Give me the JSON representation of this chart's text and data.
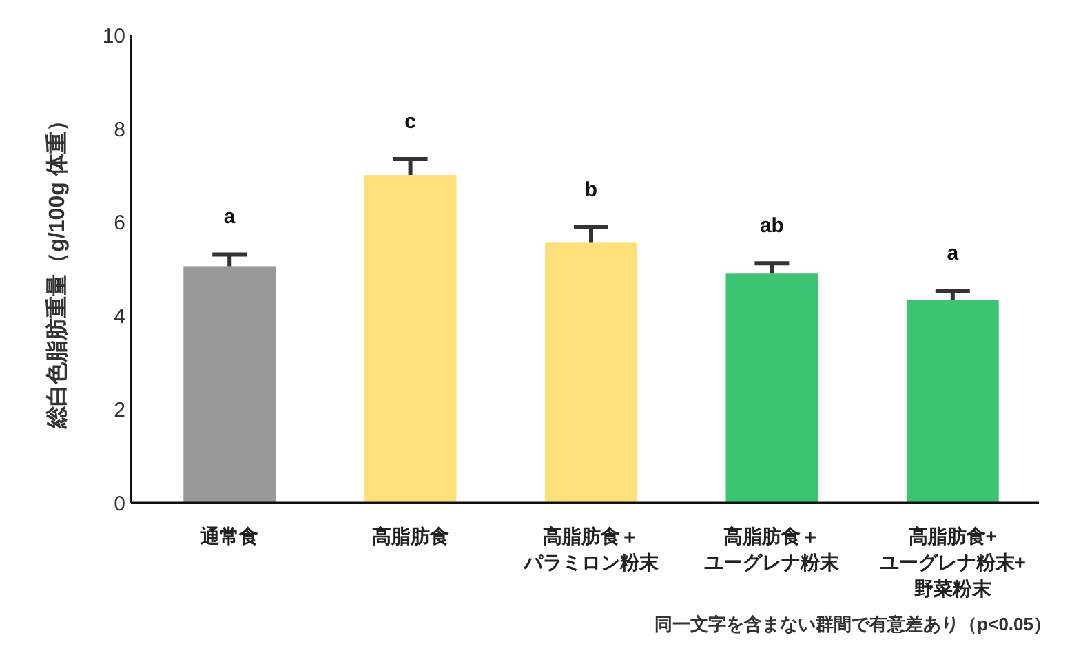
{
  "chart_data": {
    "type": "bar",
    "ylabel": "総白色脂肪重量（g/100g 体重）",
    "categories": [
      "通常食",
      "高脂肪食",
      "高脂肪食＋パラミロン粉末",
      "高脂肪食＋ユーグレナ粉末",
      "高脂肪食+ユーグレナ粉末+野菜粉末"
    ],
    "values": [
      5.06,
      7.01,
      5.56,
      4.9,
      4.34
    ],
    "colors": [
      "#999999",
      "#fedf79",
      "#fedf79",
      "#3cc473",
      "#3cc473"
    ],
    "errors": [
      [
        5.06,
        5.31
      ],
      [
        7.01,
        7.35
      ],
      [
        5.56,
        5.89
      ],
      [
        4.9,
        5.12
      ],
      [
        4.34,
        4.53
      ]
    ],
    "ylim": [
      0,
      10
    ],
    "yticks": [
      0,
      2,
      4,
      6,
      8,
      10
    ],
    "annotations": [
      {
        "text": "a",
        "x": "通常食",
        "y": 5.06
      },
      {
        "text": "c",
        "x": "高脂肪食",
        "y": 7.01
      },
      {
        "text": "b",
        "x": "高脂肪食＋パラミロン粉末",
        "y": 5.56
      },
      {
        "text": "ab",
        "x": "高脂肪食＋ユーグレナ粉末",
        "y": 4.9
      },
      {
        "text": "a",
        "x": "高脂肪食+ユーグレナ粉末+野菜粉末",
        "y": 4.34
      },
      "同一文字を含まない群間で有意差あり（p<0.05）"
    ]
  }
}
